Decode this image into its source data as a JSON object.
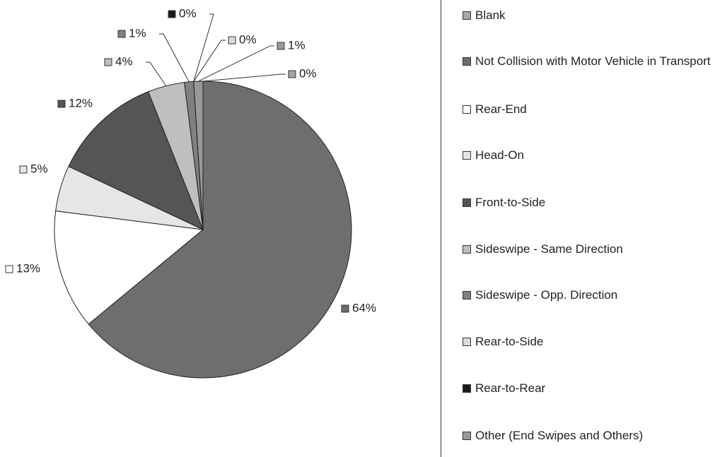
{
  "chart_data": {
    "type": "pie",
    "categories": [
      "Blank",
      "Not Collision with Motor Vehicle in Transport",
      "Rear-End",
      "Head-On",
      "Front-to-Side",
      "Sideswipe - Same Direction",
      "Sideswipe - Opp. Direction",
      "Rear-to-Side",
      "Rear-to-Rear",
      "Other (End Swipes and Others)"
    ],
    "values": [
      0,
      64,
      13,
      5,
      12,
      4,
      1,
      0,
      0,
      1
    ],
    "value_labels": [
      "0%",
      "64%",
      "13%",
      "5%",
      "12%",
      "4%",
      "1%",
      "0%",
      "0%",
      "1%"
    ],
    "colors": [
      "#a6a6a6",
      "#6e6e6e",
      "#ffffff",
      "#e6e6e6",
      "#555555",
      "#bfbfbf",
      "#808080",
      "#d9d9d9",
      "#1a1a1a",
      "#999999"
    ],
    "legend": "right"
  }
}
